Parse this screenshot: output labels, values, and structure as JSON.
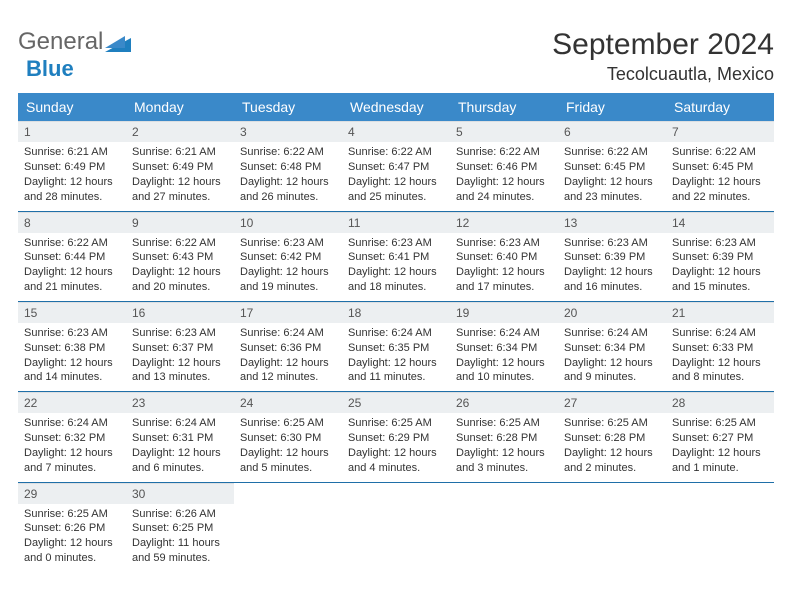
{
  "logo": {
    "text1": "General",
    "text2": "Blue"
  },
  "title": "September 2024",
  "location": "Tecolcuautla, Mexico",
  "colors": {
    "header_bg": "#3a89c9",
    "daynum_bg": "#eceff1",
    "row_border": "#1f6fa8",
    "text": "#333333",
    "logo_blue": "#1f7fbf"
  },
  "weekdays": [
    "Sunday",
    "Monday",
    "Tuesday",
    "Wednesday",
    "Thursday",
    "Friday",
    "Saturday"
  ],
  "weeks": [
    [
      {
        "n": "1",
        "sunrise": "Sunrise: 6:21 AM",
        "sunset": "Sunset: 6:49 PM",
        "day": "Daylight: 12 hours and 28 minutes."
      },
      {
        "n": "2",
        "sunrise": "Sunrise: 6:21 AM",
        "sunset": "Sunset: 6:49 PM",
        "day": "Daylight: 12 hours and 27 minutes."
      },
      {
        "n": "3",
        "sunrise": "Sunrise: 6:22 AM",
        "sunset": "Sunset: 6:48 PM",
        "day": "Daylight: 12 hours and 26 minutes."
      },
      {
        "n": "4",
        "sunrise": "Sunrise: 6:22 AM",
        "sunset": "Sunset: 6:47 PM",
        "day": "Daylight: 12 hours and 25 minutes."
      },
      {
        "n": "5",
        "sunrise": "Sunrise: 6:22 AM",
        "sunset": "Sunset: 6:46 PM",
        "day": "Daylight: 12 hours and 24 minutes."
      },
      {
        "n": "6",
        "sunrise": "Sunrise: 6:22 AM",
        "sunset": "Sunset: 6:45 PM",
        "day": "Daylight: 12 hours and 23 minutes."
      },
      {
        "n": "7",
        "sunrise": "Sunrise: 6:22 AM",
        "sunset": "Sunset: 6:45 PM",
        "day": "Daylight: 12 hours and 22 minutes."
      }
    ],
    [
      {
        "n": "8",
        "sunrise": "Sunrise: 6:22 AM",
        "sunset": "Sunset: 6:44 PM",
        "day": "Daylight: 12 hours and 21 minutes."
      },
      {
        "n": "9",
        "sunrise": "Sunrise: 6:22 AM",
        "sunset": "Sunset: 6:43 PM",
        "day": "Daylight: 12 hours and 20 minutes."
      },
      {
        "n": "10",
        "sunrise": "Sunrise: 6:23 AM",
        "sunset": "Sunset: 6:42 PM",
        "day": "Daylight: 12 hours and 19 minutes."
      },
      {
        "n": "11",
        "sunrise": "Sunrise: 6:23 AM",
        "sunset": "Sunset: 6:41 PM",
        "day": "Daylight: 12 hours and 18 minutes."
      },
      {
        "n": "12",
        "sunrise": "Sunrise: 6:23 AM",
        "sunset": "Sunset: 6:40 PM",
        "day": "Daylight: 12 hours and 17 minutes."
      },
      {
        "n": "13",
        "sunrise": "Sunrise: 6:23 AM",
        "sunset": "Sunset: 6:39 PM",
        "day": "Daylight: 12 hours and 16 minutes."
      },
      {
        "n": "14",
        "sunrise": "Sunrise: 6:23 AM",
        "sunset": "Sunset: 6:39 PM",
        "day": "Daylight: 12 hours and 15 minutes."
      }
    ],
    [
      {
        "n": "15",
        "sunrise": "Sunrise: 6:23 AM",
        "sunset": "Sunset: 6:38 PM",
        "day": "Daylight: 12 hours and 14 minutes."
      },
      {
        "n": "16",
        "sunrise": "Sunrise: 6:23 AM",
        "sunset": "Sunset: 6:37 PM",
        "day": "Daylight: 12 hours and 13 minutes."
      },
      {
        "n": "17",
        "sunrise": "Sunrise: 6:24 AM",
        "sunset": "Sunset: 6:36 PM",
        "day": "Daylight: 12 hours and 12 minutes."
      },
      {
        "n": "18",
        "sunrise": "Sunrise: 6:24 AM",
        "sunset": "Sunset: 6:35 PM",
        "day": "Daylight: 12 hours and 11 minutes."
      },
      {
        "n": "19",
        "sunrise": "Sunrise: 6:24 AM",
        "sunset": "Sunset: 6:34 PM",
        "day": "Daylight: 12 hours and 10 minutes."
      },
      {
        "n": "20",
        "sunrise": "Sunrise: 6:24 AM",
        "sunset": "Sunset: 6:34 PM",
        "day": "Daylight: 12 hours and 9 minutes."
      },
      {
        "n": "21",
        "sunrise": "Sunrise: 6:24 AM",
        "sunset": "Sunset: 6:33 PM",
        "day": "Daylight: 12 hours and 8 minutes."
      }
    ],
    [
      {
        "n": "22",
        "sunrise": "Sunrise: 6:24 AM",
        "sunset": "Sunset: 6:32 PM",
        "day": "Daylight: 12 hours and 7 minutes."
      },
      {
        "n": "23",
        "sunrise": "Sunrise: 6:24 AM",
        "sunset": "Sunset: 6:31 PM",
        "day": "Daylight: 12 hours and 6 minutes."
      },
      {
        "n": "24",
        "sunrise": "Sunrise: 6:25 AM",
        "sunset": "Sunset: 6:30 PM",
        "day": "Daylight: 12 hours and 5 minutes."
      },
      {
        "n": "25",
        "sunrise": "Sunrise: 6:25 AM",
        "sunset": "Sunset: 6:29 PM",
        "day": "Daylight: 12 hours and 4 minutes."
      },
      {
        "n": "26",
        "sunrise": "Sunrise: 6:25 AM",
        "sunset": "Sunset: 6:28 PM",
        "day": "Daylight: 12 hours and 3 minutes."
      },
      {
        "n": "27",
        "sunrise": "Sunrise: 6:25 AM",
        "sunset": "Sunset: 6:28 PM",
        "day": "Daylight: 12 hours and 2 minutes."
      },
      {
        "n": "28",
        "sunrise": "Sunrise: 6:25 AM",
        "sunset": "Sunset: 6:27 PM",
        "day": "Daylight: 12 hours and 1 minute."
      }
    ],
    [
      {
        "n": "29",
        "sunrise": "Sunrise: 6:25 AM",
        "sunset": "Sunset: 6:26 PM",
        "day": "Daylight: 12 hours and 0 minutes."
      },
      {
        "n": "30",
        "sunrise": "Sunrise: 6:26 AM",
        "sunset": "Sunset: 6:25 PM",
        "day": "Daylight: 11 hours and 59 minutes."
      },
      null,
      null,
      null,
      null,
      null
    ]
  ]
}
